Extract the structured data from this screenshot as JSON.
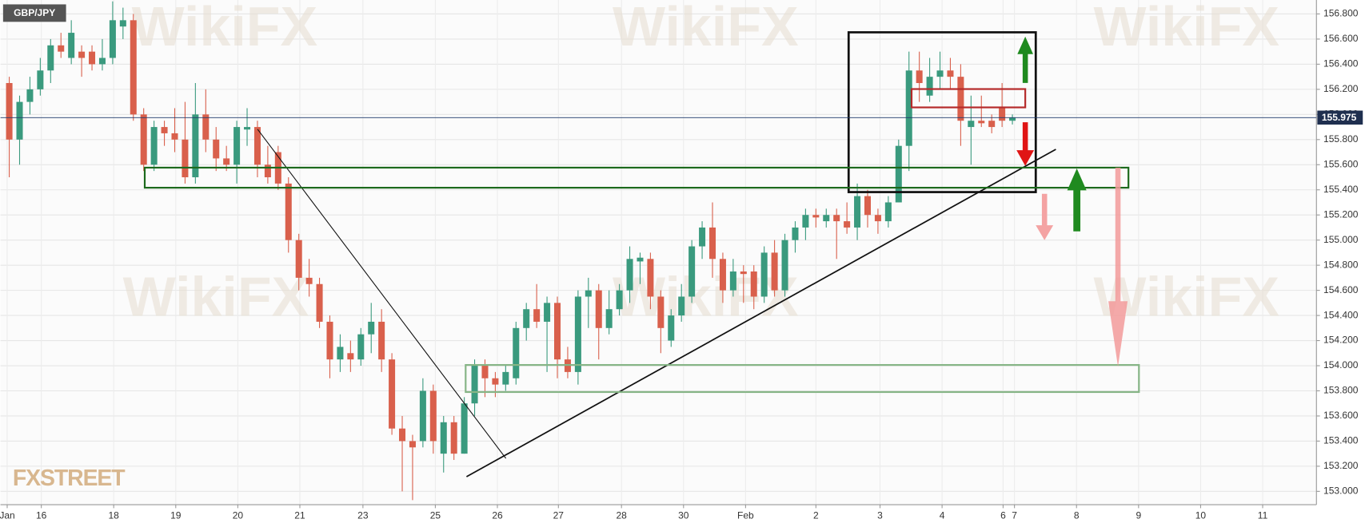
{
  "chart_data": {
    "type": "candlestick",
    "symbol": "GBP/JPY",
    "watermark": "WikiFX",
    "logo": "FXSTREET",
    "up_color": "#3a9a7e",
    "down_color": "#d9604c",
    "grid": true,
    "open": [
      156.25,
      155.8,
      156.1,
      156.2,
      156.35,
      156.55,
      156.45,
      156.5,
      156.5,
      156.4,
      156.45,
      156.7,
      156.75,
      156.0,
      155.6,
      155.9,
      155.85,
      155.8,
      155.5,
      156.0,
      155.8,
      155.65,
      155.6,
      155.88,
      155.9,
      155.6,
      155.7,
      155.45,
      155.0,
      154.7,
      154.65,
      154.35,
      154.05,
      154.1,
      154.05,
      154.25,
      154.35,
      154.05,
      153.5,
      153.4,
      153.4,
      153.8,
      153.3,
      153.55,
      153.3,
      153.7,
      154.0,
      153.9,
      153.85,
      153.9,
      154.3,
      154.45,
      154.35,
      154.5,
      154.05,
      153.95,
      154.55,
      154.6,
      154.3,
      154.45,
      154.6,
      154.83,
      154.85,
      154.55,
      154.2,
      154.4,
      154.55,
      154.95,
      155.1,
      154.85,
      154.6,
      154.75,
      154.75,
      154.55,
      154.9,
      154.6,
      155.0,
      155.1,
      155.2,
      155.15,
      155.2,
      155.15,
      155.1,
      155.35,
      155.2,
      155.15,
      155.3,
      155.75,
      156.35,
      156.15,
      156.3,
      156.35,
      156.3,
      155.9,
      155.95,
      155.95,
      156.05,
      155.95
    ],
    "high": [
      156.3,
      156.15,
      156.3,
      156.45,
      156.6,
      156.65,
      156.75,
      156.55,
      156.55,
      156.6,
      156.9,
      156.85,
      156.8,
      156.05,
      155.95,
      155.95,
      156.05,
      156.1,
      156.25,
      156.2,
      155.9,
      155.75,
      155.95,
      156.05,
      155.95,
      155.75,
      155.75,
      155.5,
      155.05,
      154.85,
      154.7,
      154.4,
      154.25,
      154.2,
      154.3,
      154.5,
      154.45,
      154.1,
      153.6,
      153.45,
      153.9,
      153.85,
      153.6,
      153.6,
      153.75,
      154.05,
      154.05,
      153.95,
      154.0,
      154.35,
      154.5,
      154.65,
      154.55,
      154.55,
      154.15,
      154.6,
      154.7,
      154.65,
      154.6,
      154.65,
      154.95,
      154.9,
      154.9,
      154.6,
      154.45,
      154.65,
      155.0,
      155.15,
      155.3,
      154.9,
      154.85,
      154.8,
      154.8,
      154.95,
      155.0,
      155.05,
      155.15,
      155.25,
      155.25,
      155.25,
      155.25,
      155.3,
      155.45,
      155.4,
      155.25,
      155.35,
      155.8,
      156.5,
      156.5,
      156.45,
      156.5,
      156.45,
      156.4,
      156.15,
      156.15,
      156.0,
      156.25,
      156.0
    ],
    "low": [
      155.5,
      155.6,
      156.0,
      156.15,
      156.25,
      156.45,
      156.4,
      156.3,
      156.35,
      156.35,
      156.4,
      156.6,
      155.95,
      155.55,
      155.55,
      155.75,
      155.7,
      155.45,
      155.45,
      155.7,
      155.55,
      155.55,
      155.45,
      155.75,
      155.5,
      155.45,
      155.4,
      154.9,
      154.6,
      154.55,
      154.3,
      153.9,
      153.95,
      153.95,
      154.0,
      154.1,
      153.95,
      153.45,
      153.0,
      152.93,
      153.35,
      153.3,
      153.15,
      153.25,
      153.3,
      153.6,
      153.75,
      153.75,
      153.8,
      153.85,
      154.2,
      154.3,
      153.95,
      153.9,
      153.9,
      153.85,
      154.3,
      154.05,
      154.25,
      154.4,
      154.5,
      154.65,
      154.45,
      154.1,
      154.15,
      154.35,
      154.5,
      154.85,
      154.7,
      154.5,
      154.55,
      154.5,
      154.45,
      154.5,
      154.55,
      154.55,
      154.9,
      155.0,
      155.1,
      155.1,
      154.85,
      155.05,
      155.0,
      155.1,
      155.05,
      155.1,
      155.3,
      155.55,
      156.1,
      156.1,
      156.2,
      156.2,
      155.75,
      155.6,
      155.9,
      155.85,
      155.9,
      155.92
    ],
    "close": [
      155.8,
      156.1,
      156.2,
      156.35,
      156.55,
      156.5,
      156.65,
      156.45,
      156.4,
      156.45,
      156.75,
      156.75,
      156.0,
      155.6,
      155.9,
      155.85,
      155.8,
      155.5,
      156.0,
      155.8,
      155.65,
      155.6,
      155.9,
      155.9,
      155.6,
      155.5,
      155.45,
      155.0,
      154.7,
      154.65,
      154.35,
      154.05,
      154.15,
      154.05,
      154.25,
      154.35,
      154.05,
      153.5,
      153.4,
      153.35,
      153.8,
      153.4,
      153.55,
      153.3,
      153.7,
      154.0,
      153.9,
      153.85,
      153.95,
      154.3,
      154.45,
      154.35,
      154.5,
      154.05,
      153.95,
      154.55,
      154.6,
      154.3,
      154.45,
      154.6,
      154.85,
      154.86,
      154.55,
      154.3,
      154.4,
      154.55,
      154.95,
      155.1,
      154.85,
      154.6,
      154.75,
      154.73,
      154.55,
      154.9,
      154.6,
      155.0,
      155.1,
      155.2,
      155.18,
      155.2,
      155.15,
      155.1,
      155.35,
      155.2,
      155.15,
      155.3,
      155.75,
      156.35,
      156.25,
      156.3,
      156.35,
      156.3,
      155.95,
      155.95,
      155.93,
      155.9,
      155.95,
      155.975
    ],
    "last_price": {
      "value": 155.975,
      "label": "155.975"
    },
    "xlim": [
      -0.85,
      126.4
    ],
    "xticks": [
      {
        "value": -0.2,
        "label": "Jan"
      },
      {
        "value": 3.1,
        "label": "16"
      },
      {
        "value": 10.1,
        "label": "18"
      },
      {
        "value": 16.1,
        "label": "19"
      },
      {
        "value": 22.1,
        "label": "20"
      },
      {
        "value": 28.1,
        "label": "21"
      },
      {
        "value": 34.2,
        "label": "23"
      },
      {
        "value": 41.2,
        "label": "25"
      },
      {
        "value": 47.2,
        "label": "26"
      },
      {
        "value": 53.1,
        "label": "27"
      },
      {
        "value": 59.2,
        "label": "28"
      },
      {
        "value": 65.2,
        "label": "30"
      },
      {
        "value": 71.2,
        "label": "Feb"
      },
      {
        "value": 78.0,
        "label": "2"
      },
      {
        "value": 84.2,
        "label": "3"
      },
      {
        "value": 90.2,
        "label": "4"
      },
      {
        "value": 96.1,
        "label": "6"
      },
      {
        "value": 97.2,
        "label": "7"
      },
      {
        "value": 103.2,
        "label": "8"
      },
      {
        "value": 109.2,
        "label": "9"
      },
      {
        "value": 115.2,
        "label": "10"
      },
      {
        "value": 121.2,
        "label": "11"
      }
    ],
    "ylim": [
      152.894,
      156.911
    ],
    "yticks": [
      {
        "value": 153.0,
        "label": "153.000"
      },
      {
        "value": 153.2,
        "label": "153.200"
      },
      {
        "value": 153.4,
        "label": "153.400"
      },
      {
        "value": 153.6,
        "label": "153.600"
      },
      {
        "value": 153.8,
        "label": "153.800"
      },
      {
        "value": 154.0,
        "label": "154.000"
      },
      {
        "value": 154.2,
        "label": "154.200"
      },
      {
        "value": 154.4,
        "label": "154.400"
      },
      {
        "value": 154.6,
        "label": "154.600"
      },
      {
        "value": 154.8,
        "label": "154.800"
      },
      {
        "value": 155.0,
        "label": "155.000"
      },
      {
        "value": 155.2,
        "label": "155.200"
      },
      {
        "value": 155.4,
        "label": "155.400"
      },
      {
        "value": 155.6,
        "label": "155.600"
      },
      {
        "value": 155.8,
        "label": "155.800"
      },
      {
        "value": 156.0,
        "label": "156.000"
      },
      {
        "value": 156.2,
        "label": "156.200"
      },
      {
        "value": 156.4,
        "label": "156.400"
      },
      {
        "value": 156.6,
        "label": "156.600"
      },
      {
        "value": 156.8,
        "label": "156.800"
      }
    ]
  }
}
